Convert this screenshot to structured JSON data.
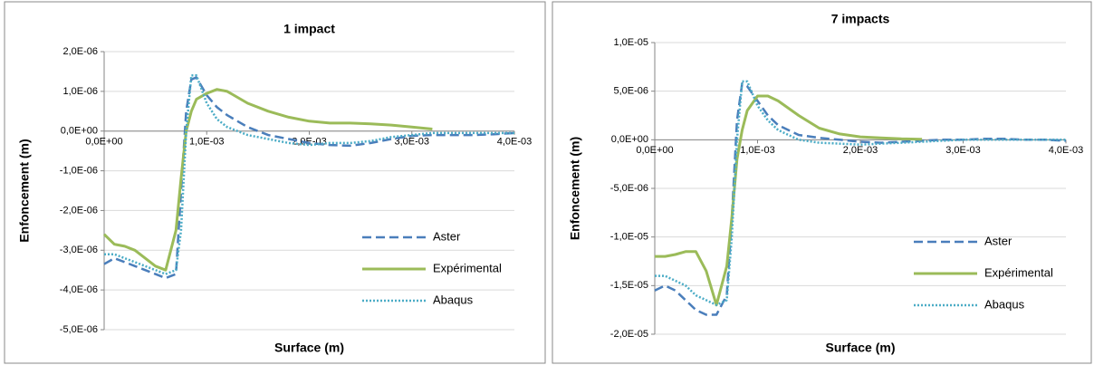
{
  "chart_data": [
    {
      "type": "line",
      "title": "1 impact",
      "x_label": "Surface (m)",
      "y_label": "Enfoncement (m)",
      "x": [
        0,
        0.0001,
        0.0002,
        0.0003,
        0.0004,
        0.0005,
        0.0006,
        0.0007,
        0.00075,
        0.0008,
        0.00085,
        0.0009,
        0.001,
        0.0011,
        0.0012,
        0.0014,
        0.0016,
        0.0018,
        0.002,
        0.0022,
        0.0024,
        0.0026,
        0.0028,
        0.003,
        0.0032,
        0.0034,
        0.0036,
        0.0038,
        0.004
      ],
      "series": [
        {
          "name": "Aster",
          "color": "#4a7ebb",
          "dash": "dashed",
          "values": [
            -3.35e-06,
            -3.2e-06,
            -3.3e-06,
            -3.4e-06,
            -3.5e-06,
            -3.6e-06,
            -3.7e-06,
            -3.6e-06,
            -1.5e-06,
            5e-07,
            1.3e-06,
            1.35e-06,
            9e-07,
            6e-07,
            4e-07,
            1e-07,
            -1e-07,
            -2e-07,
            -3e-07,
            -3.5e-07,
            -3.7e-07,
            -3e-07,
            -2e-07,
            -1.2e-07,
            -1e-07,
            -1e-07,
            -1e-07,
            -8e-08,
            -5e-08
          ]
        },
        {
          "name": "Expérimental",
          "color": "#9bbb59",
          "dash": "solid",
          "values": [
            -2.6e-06,
            -2.85e-06,
            -2.9e-06,
            -3e-06,
            -3.2e-06,
            -3.4e-06,
            -3.5e-06,
            -2.5e-06,
            -1.2e-06,
            0,
            5e-07,
            8e-07,
            9.5e-07,
            1.05e-06,
            1e-06,
            7e-07,
            5e-07,
            3.5e-07,
            2.5e-07,
            2e-07,
            2e-07,
            1.8e-07,
            1.5e-07,
            1e-07,
            5e-08,
            null,
            null,
            null,
            null
          ]
        },
        {
          "name": "Abaqus",
          "color": "#4bacc6",
          "dash": "dotted",
          "values": [
            -3.1e-06,
            -3.1e-06,
            -3.2e-06,
            -3.3e-06,
            -3.4e-06,
            -3.5e-06,
            -3.6e-06,
            -3.5e-06,
            -2.5e-06,
            0,
            1.4e-06,
            1.4e-06,
            7e-07,
            3e-07,
            1e-07,
            -1e-07,
            -2e-07,
            -3e-07,
            -3.5e-07,
            -3e-07,
            -3e-07,
            -2.5e-07,
            -1.5e-07,
            -1e-07,
            -5e-08,
            -5e-08,
            -5e-08,
            -5e-08,
            -5e-08
          ]
        }
      ],
      "xlim": [
        0,
        0.004
      ],
      "xticks": [
        {
          "value": 0,
          "label": "0,0E+00"
        },
        {
          "value": 0.001,
          "label": "1,0E-03"
        },
        {
          "value": 0.002,
          "label": "2,0E-03"
        },
        {
          "value": 0.003,
          "label": "3,0E-03"
        },
        {
          "value": 0.004,
          "label": "4,0E-03"
        }
      ],
      "ylim": [
        -5e-06,
        2e-06
      ],
      "yticks": [
        {
          "value": 2e-06,
          "label": "2,0E-06"
        },
        {
          "value": 1e-06,
          "label": "1,0E-06"
        },
        {
          "value": 0,
          "label": "0,0E+00"
        },
        {
          "value": -1e-06,
          "label": "-1,0E-06"
        },
        {
          "value": -2e-06,
          "label": "-2,0E-06"
        },
        {
          "value": -3e-06,
          "label": "-3,0E-06"
        },
        {
          "value": -4e-06,
          "label": "-4,0E-06"
        },
        {
          "value": -5e-06,
          "label": "-5,0E-06"
        }
      ],
      "grid": true,
      "legend_position": "lower right"
    },
    {
      "type": "line",
      "title": "7 impacts",
      "x_label": "Surface (m)",
      "y_label": "Enfoncement (m)",
      "x": [
        0,
        0.0001,
        0.0002,
        0.0003,
        0.0004,
        0.0005,
        0.0006,
        0.0007,
        0.00075,
        0.0008,
        0.00085,
        0.0009,
        0.001,
        0.0011,
        0.0012,
        0.0014,
        0.0016,
        0.0018,
        0.002,
        0.0022,
        0.0024,
        0.0026,
        0.0028,
        0.003,
        0.0032,
        0.0034,
        0.0036,
        0.0038,
        0.004
      ],
      "series": [
        {
          "name": "Aster",
          "color": "#4a7ebb",
          "dash": "dashed",
          "values": [
            -1.55e-05,
            -1.5e-05,
            -1.55e-05,
            -1.65e-05,
            -1.75e-05,
            -1.8e-05,
            -1.8e-05,
            -1.6e-05,
            -8e-06,
            2e-06,
            5.8e-06,
            5.5e-06,
            4e-06,
            2.5e-06,
            1.5e-06,
            5e-07,
            2e-07,
            0,
            -2e-07,
            -3e-07,
            -2e-07,
            -1e-07,
            0,
            0,
            1e-07,
            1e-07,
            0,
            0,
            -1e-07
          ]
        },
        {
          "name": "Expérimental",
          "color": "#9bbb59",
          "dash": "solid",
          "values": [
            -1.2e-05,
            -1.2e-05,
            -1.18e-05,
            -1.15e-05,
            -1.15e-05,
            -1.35e-05,
            -1.7e-05,
            -1.3e-05,
            -8e-06,
            -2e-06,
            1e-06,
            3e-06,
            4.5e-06,
            4.5e-06,
            4e-06,
            2.5e-06,
            1.2e-06,
            6e-07,
            3e-07,
            2e-07,
            1e-07,
            5e-08,
            null,
            null,
            null,
            null,
            null,
            null,
            null
          ]
        },
        {
          "name": "Abaqus",
          "color": "#4bacc6",
          "dash": "dotted",
          "values": [
            -1.4e-05,
            -1.4e-05,
            -1.45e-05,
            -1.5e-05,
            -1.6e-05,
            -1.65e-05,
            -1.7e-05,
            -1.65e-05,
            -1e-05,
            0,
            6e-06,
            6e-06,
            3.5e-06,
            2e-06,
            1e-06,
            0,
            -3e-07,
            -4e-07,
            -5e-07,
            -4e-07,
            -3e-07,
            -2e-07,
            -1e-07,
            0,
            0,
            0,
            0,
            0,
            0
          ]
        }
      ],
      "xlim": [
        0,
        0.004
      ],
      "xticks": [
        {
          "value": 0,
          "label": "0,0E+00"
        },
        {
          "value": 0.001,
          "label": "1,0E-03"
        },
        {
          "value": 0.002,
          "label": "2,0E-03"
        },
        {
          "value": 0.003,
          "label": "3,0E-03"
        },
        {
          "value": 0.004,
          "label": "4,0E-03"
        }
      ],
      "ylim": [
        -2e-05,
        1e-05
      ],
      "yticks": [
        {
          "value": 1e-05,
          "label": "1,0E-05"
        },
        {
          "value": 5e-06,
          "label": "5,0E-06"
        },
        {
          "value": 0,
          "label": "0,0E+00"
        },
        {
          "value": -5e-06,
          "label": "-5,0E-06"
        },
        {
          "value": -1e-05,
          "label": "-1,0E-05"
        },
        {
          "value": -1.5e-05,
          "label": "-1,5E-05"
        },
        {
          "value": -2e-05,
          "label": "-2,0E-05"
        }
      ],
      "grid": true,
      "legend_position": "lower right"
    }
  ]
}
